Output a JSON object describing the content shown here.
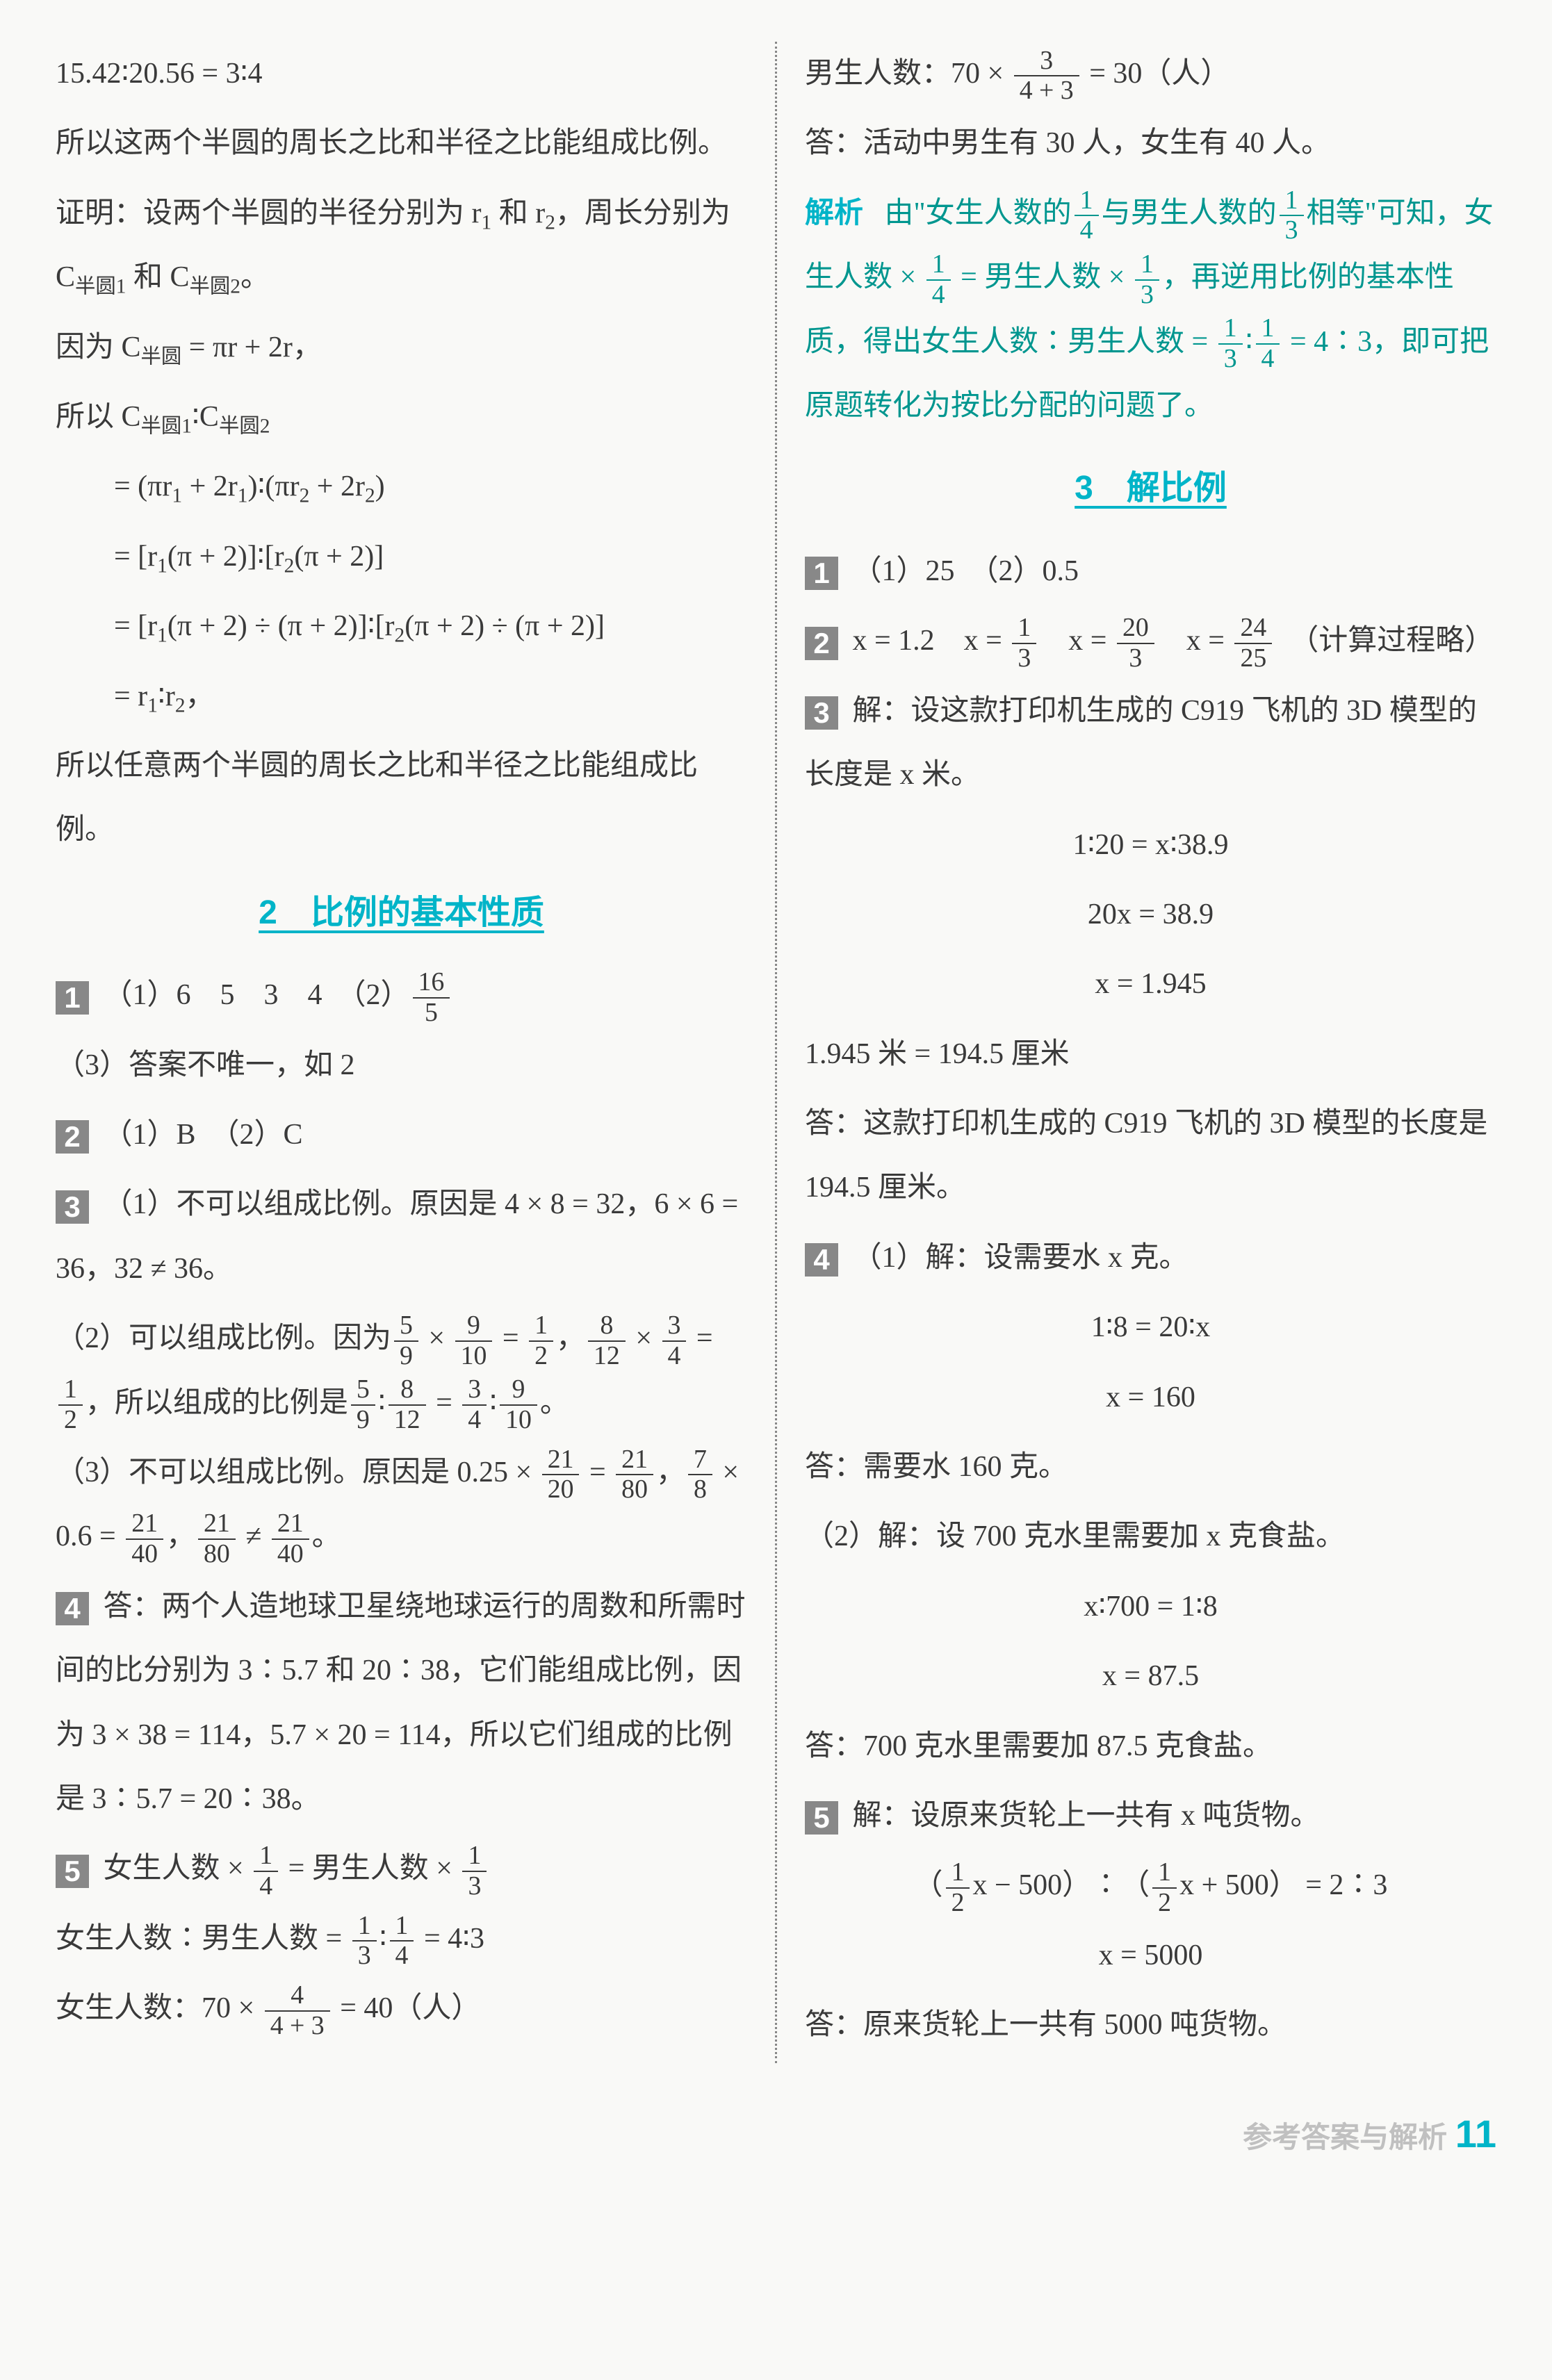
{
  "left": {
    "l1": "15.42∶20.56 = 3∶4",
    "l2": "所以这两个半圆的周长之比和半径之比能组成比例。",
    "l3a": "证明：设两个半圆的半径分别为 r",
    "l3b": " 和 r",
    "l3c": "，周长分别为 C",
    "l3d": " 和 C",
    "l3e": "。",
    "l4a": "因为 C",
    "l4b": " = πr + 2r，",
    "l5a": "所以 C",
    "l5b": "∶C",
    "l6a": "= (πr",
    "l6b": " + 2r",
    "l6c": ")∶(πr",
    "l6d": " + 2r",
    "l6e": ")",
    "l7a": "= [r",
    "l7b": "(π + 2)]∶[r",
    "l7c": "(π + 2)]",
    "l8a": "= [r",
    "l8b": "(π + 2) ÷ (π + 2)]∶[r",
    "l8c": "(π + 2) ÷ (π + 2)]",
    "l9a": "= r",
    "l9b": "∶r",
    "l9c": "，",
    "l10": "所以任意两个半圆的周长之比和半径之比能组成比例。",
    "sec2_title": "2　比例的基本性质",
    "q1": "（1）6　5　3　4　（2）",
    "q1_fn": "16",
    "q1_fd": "5",
    "q1_3": "（3）答案不唯一，如 2",
    "q2": "（1）B　（2）C",
    "q3_1": "（1）不可以组成比例。原因是 4 × 8 = 32，6 × 6 = 36，32 ≠ 36。",
    "q3_2a": "（2）可以组成比例。因为",
    "q3_2b": " × ",
    "q3_2c": " = ",
    "q3_2d": "，",
    "q3_2e": " × ",
    "q3_2f": " = ",
    "q3_2g": "，所以组成的比例是",
    "q3_2h": "∶",
    "q3_2i": " = ",
    "q3_2j": "∶",
    "q3_2k": "。",
    "f59n": "5",
    "f59d": "9",
    "f910n": "9",
    "f910d": "10",
    "f12n": "1",
    "f12d": "2",
    "f812n": "8",
    "f812d": "12",
    "f34n": "3",
    "f34d": "4",
    "q3_3a": "（3）不可以组成比例。原因是 0.25 × ",
    "q3_3b": " = ",
    "q3_3c": "，",
    "f2120n": "21",
    "f2120d": "20",
    "f2180n": "21",
    "f2180d": "80",
    "q3_3d": " × 0.6 = ",
    "q3_3e": "，",
    "q3_3f": " ≠ ",
    "q3_3g": "。",
    "f78n": "7",
    "f78d": "8",
    "f2140n": "21",
    "f2140d": "40",
    "q4": "答：两个人造地球卫星绕地球运行的周数和所需时间的比分别为 3∶5.7 和 20∶38，它们能组成比例，因为 3 × 38 = 114，5.7 × 20 = 114，所以它们组成的比例是 3∶5.7 = 20∶38。",
    "q5_1a": "女生人数 × ",
    "q5_1b": " = 男生人数 × ",
    "f14n": "1",
    "f14d": "4",
    "f13n": "1",
    "f13d": "3",
    "q5_2a": "女生人数∶男生人数 = ",
    "q5_2b": "∶",
    "q5_2c": " = 4∶3",
    "q5_3a": "女生人数：70 × ",
    "q5_3b": " = 40（人）",
    "f443n": "4",
    "f443d": "4 + 3"
  },
  "right": {
    "r1a": "男生人数：70 × ",
    "r1b": " = 30（人）",
    "f343n": "3",
    "f343d": "4 + 3",
    "r2": "答：活动中男生有 30 人，女生有 40 人。",
    "ana_label": "解析",
    "ana1a": "由\"女生人数的",
    "ana1b": "与男生人数的",
    "ana1c": "相等\"可知，女生人数 × ",
    "ana1d": " = 男生人数 × ",
    "ana1e": "，再逆用比例的基本性质，得出女生人数∶男生人数 = ",
    "ana1f": "∶",
    "ana1g": " = 4∶3，即可把原题转化为按比分配的问题了。",
    "sec3_title": "3　解比例",
    "s3_q1": "（1）25　（2）0.5",
    "s3_q2a": "x = 1.2　x = ",
    "s3_q2b": "　x = ",
    "s3_q2c": "　x = ",
    "s3_q2d": "　（计算过程略）",
    "f203n": "20",
    "f203d": "3",
    "f2425n": "24",
    "f2425d": "25",
    "s3_q3_1": "解：设这款打印机生成的 C919 飞机的 3D 模型的长度是 x 米。",
    "s3_q3_2": "1∶20 = x∶38.9",
    "s3_q3_3": "20x = 38.9",
    "s3_q3_4": "x = 1.945",
    "s3_q3_5": "1.945 米 = 194.5 厘米",
    "s3_q3_6": "答：这款打印机生成的 C919 飞机的 3D 模型的长度是 194.5 厘米。",
    "s3_q4_1": "（1）解：设需要水 x 克。",
    "s3_q4_2": "1∶8 = 20∶x",
    "s3_q4_3": "x = 160",
    "s3_q4_4": "答：需要水 160 克。",
    "s3_q4_5": "（2）解：设 700 克水里需要加 x 克食盐。",
    "s3_q4_6": "x∶700 = 1∶8",
    "s3_q4_7": "x = 87.5",
    "s3_q4_8": "答：700 克水里需要加 87.5 克食盐。",
    "s3_q5_1": "解：设原来货轮上一共有 x 吨货物。",
    "s3_q5_2a": "（",
    "s3_q5_2b": "x − 500）∶（",
    "s3_q5_2c": "x + 500） = 2∶3",
    "s3_q5_3": "x = 5000",
    "s3_q5_4": "答：原来货轮上一共有 5000 吨货物。"
  },
  "badges": {
    "b1": "1",
    "b2": "2",
    "b3": "3",
    "b4": "4",
    "b5": "5"
  },
  "subs": {
    "s1": "1",
    "s2": "2",
    "sby": "半圆",
    "sby1": "半圆1",
    "sby2": "半圆2"
  },
  "footer": {
    "label": "参考答案与解析",
    "page": "11"
  }
}
